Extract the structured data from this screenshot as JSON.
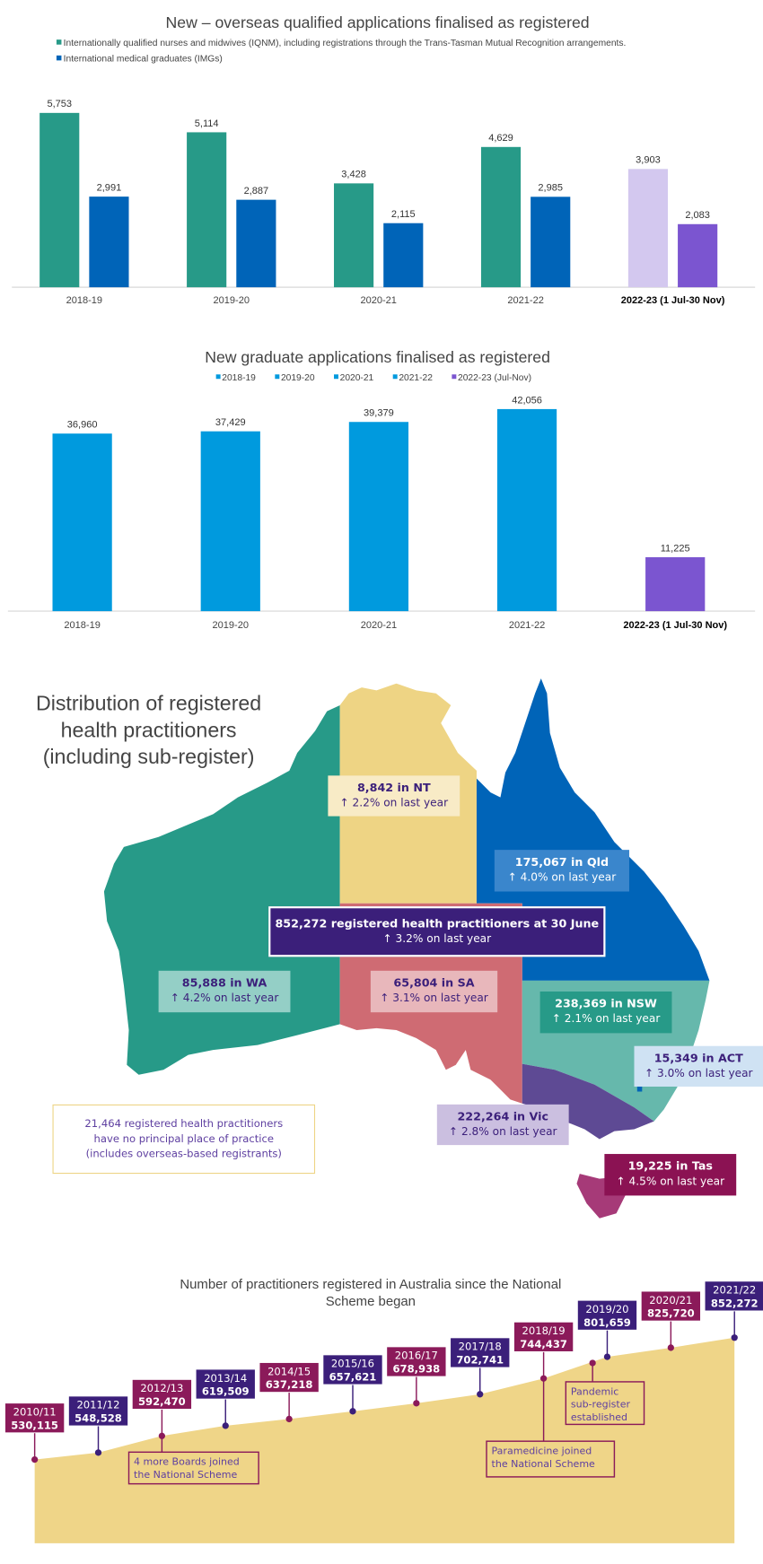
{
  "chart_data": [
    {
      "type": "bar",
      "title": "New – overseas qualified applications finalised as registered",
      "categories": [
        "2018-19",
        "2019-20",
        "2020-21",
        "2021-22",
        "2022-23 (1 Jul-30 Nov)"
      ],
      "series": [
        {
          "name": "Internationally qualified nurses and midwives (IQNM), including registrations through the Trans-Tasman Mutual Recognition arrangements.",
          "color": "#279a88",
          "highlight_color": "#d3c8ef",
          "values": [
            5753,
            5114,
            3428,
            4629,
            3903
          ],
          "labels": [
            "5,753",
            "5,114",
            "3,428",
            "4,629",
            "3,903"
          ]
        },
        {
          "name": "International medical graduates (IMGs)",
          "color": "#0064b8",
          "highlight_color": "#7b55d0",
          "values": [
            2991,
            2887,
            2115,
            2985,
            2083
          ],
          "labels": [
            "2,991",
            "2,887",
            "2,115",
            "2,985",
            "2,083"
          ]
        }
      ],
      "legend": "top-left",
      "grid": false
    },
    {
      "type": "bar",
      "title": "New graduate applications finalised as registered",
      "categories": [
        "2018-19",
        "2019-20",
        "2020-21",
        "2021-22",
        "2022-23 (1 Jul-30 Nov)"
      ],
      "values": [
        36960,
        37429,
        39379,
        42056,
        11225
      ],
      "labels": [
        "36,960",
        "37,429",
        "39,379",
        "42,056",
        "11,225"
      ],
      "colors": [
        "#009ade",
        "#009ade",
        "#009ade",
        "#009ade",
        "#7b55d0"
      ],
      "legend_entries": [
        "2018-19",
        "2019-20",
        "2020-21",
        "2021-22",
        "2022-23 (Jul-Nov)"
      ],
      "legend": "top-center",
      "grid": false
    },
    {
      "type": "area",
      "title": "Number of practitioners registered in Australia since the National Scheme began",
      "categories": [
        "2010/11",
        "2011/12",
        "2012/13",
        "2013/14",
        "2014/15",
        "2015/16",
        "2016/17",
        "2017/18",
        "2018/19",
        "2019/20",
        "2020/21",
        "2021/22"
      ],
      "values": [
        530115,
        548528,
        592470,
        619509,
        637218,
        657621,
        678938,
        702741,
        744437,
        801659,
        825720,
        852272
      ],
      "labels": [
        "530,115",
        "548,528",
        "592,470",
        "619,509",
        "637,218",
        "657,621",
        "678,938",
        "702,741",
        "744,437",
        "801,659",
        "825,720",
        "852,272"
      ],
      "annotations": [
        {
          "after": "2012/13",
          "text": [
            "4 more Boards joined",
            "the National Scheme"
          ]
        },
        {
          "after": "2018/19",
          "text": [
            "Paramedicine joined",
            "the National Scheme"
          ]
        },
        {
          "after": "2019/20",
          "text": [
            "Pandemic",
            "sub-register",
            "established"
          ]
        }
      ],
      "colors": {
        "odd": "#8b1a5a",
        "even": "#3b1f7a",
        "area": "#efd588"
      }
    }
  ],
  "map": {
    "title": [
      "Distribution of registered",
      "health practitioners",
      "(including sub-register)"
    ],
    "total": {
      "headline": "852,272 registered health practitioners at 30 June",
      "change": "↑ 3.2% on last year"
    },
    "states": {
      "nt": {
        "headline": "8,842 in NT",
        "change": "↑ 2.2% on last year"
      },
      "qld": {
        "headline": "175,067 in Qld",
        "change": "↑ 4.0% on last year"
      },
      "wa": {
        "headline": "85,888 in WA",
        "change": "↑ 4.2% on last year"
      },
      "sa": {
        "headline": "65,804 in SA",
        "change": "↑ 3.1% on last year"
      },
      "nsw": {
        "headline": "238,369 in NSW",
        "change": "↑ 2.1% on last year"
      },
      "act": {
        "headline": "15,349 in ACT",
        "change": "↑ 3.0% on last year"
      },
      "vic": {
        "headline": "222,264 in Vic",
        "change": "↑ 2.8% on last year"
      },
      "tas": {
        "headline": "19,225 in Tas",
        "change": "↑ 4.5% on last year"
      }
    },
    "note": [
      "21,464 registered health practitioners",
      "have no principal place of practice",
      "(includes overseas-based registrants)"
    ]
  }
}
